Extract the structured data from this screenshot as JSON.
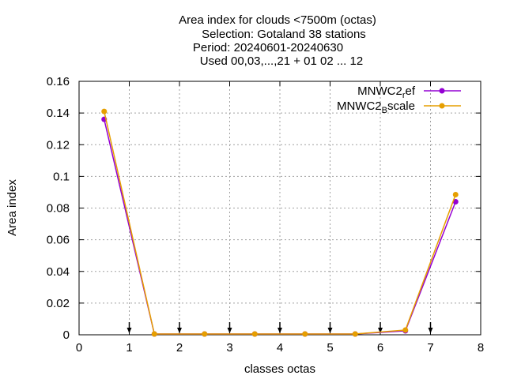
{
  "chart_data": {
    "type": "line",
    "title_lines": [
      "Area index  for clouds <7500m (octas)",
      "Selection: Gotaland     38 stations",
      "Period: 20240601-20240630",
      "Used 00,03,...,21 + 01 02 ... 12"
    ],
    "xlabel": "classes octas",
    "ylabel": "Area index",
    "xlim": [
      0,
      8
    ],
    "ylim": [
      0,
      0.16
    ],
    "xticks": [
      "0",
      "1",
      "2",
      "3",
      "4",
      "5",
      "6",
      "7",
      "8"
    ],
    "yticks": [
      "0",
      "0.02",
      "0.04",
      "0.06",
      "0.08",
      "0.1",
      "0.12",
      "0.14",
      "0.16"
    ],
    "grid": true,
    "legend_position": "top-right",
    "markers_x": [
      1,
      2,
      3,
      4,
      5,
      6,
      7
    ],
    "x": [
      0.5,
      1.5,
      2.5,
      3.5,
      4.5,
      5.5,
      6.5,
      7.5
    ],
    "series": [
      {
        "name": "MNWC2_ref",
        "legend_main": "MNWC2",
        "legend_sub": "r",
        "legend_rest": "ef",
        "color": "#9400d3",
        "values": [
          0.136,
          0.0005,
          0.0005,
          0.0005,
          0.0005,
          0.0005,
          0.0025,
          0.084
        ]
      },
      {
        "name": "MNWC2_Bscale",
        "legend_main": "MNWC2",
        "legend_sub": "B",
        "legend_rest": "scale",
        "color": "#e69f00",
        "values": [
          0.141,
          0.0005,
          0.0005,
          0.0005,
          0.0005,
          0.0005,
          0.003,
          0.0885
        ]
      }
    ]
  }
}
